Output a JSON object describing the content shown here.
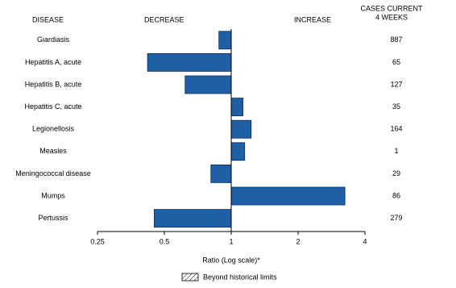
{
  "chart_data": {
    "type": "bar",
    "orientation": "horizontal",
    "disease_header": "DISEASE",
    "decrease_label": "DECREASE",
    "increase_label": "INCREASE",
    "cases_header": [
      "CASES CURRENT",
      "4 WEEKS"
    ],
    "categories": [
      "Giardiasis",
      "Hepatitis A, acute",
      "Hepatitis B, acute",
      "Hepatitis C, acute",
      "Legionellosis",
      "Measles",
      "Meningococcal disease",
      "Mumps",
      "Pertussis"
    ],
    "values": [
      0.88,
      0.42,
      0.62,
      1.13,
      1.23,
      1.15,
      0.81,
      3.25,
      0.45
    ],
    "cases": [
      887,
      65,
      127,
      35,
      164,
      1,
      29,
      86,
      279
    ],
    "color": "#1f5fa6",
    "xscale": "log",
    "baseline": 1,
    "xlim": [
      0.25,
      4
    ],
    "xticks": [
      0.25,
      0.5,
      1,
      2,
      4
    ],
    "xlabel": "Ratio (Log scale)*",
    "legend_label": "Beyond historical limits"
  }
}
